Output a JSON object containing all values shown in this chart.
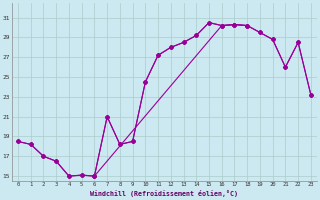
{
  "xlabel": "Windchill (Refroidissement éolien,°C)",
  "background_color": "#cce8f0",
  "grid_color": "#aacccc",
  "line_color": "#990099",
  "xlim": [
    -0.5,
    23.5
  ],
  "ylim": [
    14.5,
    32.5
  ],
  "ytick_values": [
    15,
    17,
    19,
    21,
    23,
    25,
    27,
    29,
    31
  ],
  "series1_x": [
    0,
    1,
    2,
    3,
    4,
    5,
    6,
    7,
    8,
    9,
    10,
    11,
    12,
    13,
    14,
    15,
    16,
    17,
    18
  ],
  "series1_y": [
    18.5,
    18.2,
    17.0,
    16.5,
    15.0,
    15.1,
    15.0,
    21.0,
    18.2,
    18.5,
    24.5,
    27.2,
    28.0,
    28.5,
    29.2,
    30.5,
    30.2,
    30.3,
    30.2
  ],
  "series2_x": [
    0,
    1,
    2,
    3,
    4,
    5,
    6,
    16,
    17,
    18,
    19,
    20,
    21,
    22,
    23
  ],
  "series2_y": [
    18.5,
    18.2,
    17.0,
    16.5,
    15.0,
    15.1,
    15.0,
    30.2,
    30.3,
    30.2,
    29.5,
    28.8,
    26.0,
    28.5,
    23.2
  ],
  "series3_x": [
    6,
    7,
    8,
    9,
    10,
    11,
    12,
    13,
    14,
    15,
    16,
    17,
    18,
    19,
    20,
    21,
    22,
    23
  ],
  "series3_y": [
    15.0,
    21.0,
    18.2,
    18.5,
    24.5,
    27.2,
    28.0,
    28.5,
    29.2,
    30.5,
    30.2,
    30.3,
    30.2,
    29.5,
    28.8,
    26.0,
    28.5,
    23.2
  ]
}
